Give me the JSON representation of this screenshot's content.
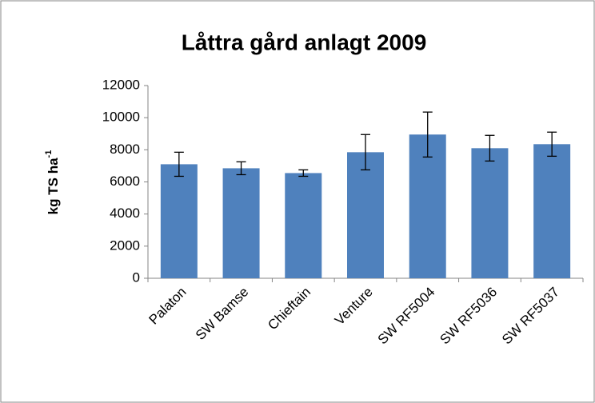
{
  "chart_data": {
    "type": "bar",
    "title": "Låttra gård anlagt 2009",
    "ylabel": {
      "text": "kg TS ha",
      "superscript": "-1"
    },
    "categories": [
      "Palaton",
      "SW Bamse",
      "Chieftain",
      "Venture",
      "SW RF5004",
      "SW RF5036",
      "SW RF5037"
    ],
    "values": [
      7100,
      6850,
      6550,
      7850,
      8950,
      8100,
      8350
    ],
    "errors": [
      750,
      400,
      200,
      1100,
      1400,
      800,
      750
    ],
    "color": "#4f81bd",
    "ylim": [
      0,
      12000
    ],
    "yticks": [
      0,
      2000,
      4000,
      6000,
      8000,
      10000,
      12000
    ],
    "grid": false
  }
}
